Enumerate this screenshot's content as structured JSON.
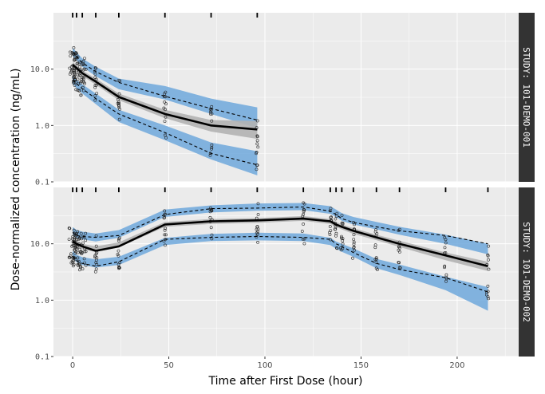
{
  "chart_data": {
    "type": "line",
    "xlabel": "Time after First Dose (hour)",
    "ylabel": "Dose-normalized concentration (ng/mL)",
    "y_scale": "log10",
    "ylim": [
      0.1,
      100
    ],
    "xlim": [
      -10,
      232
    ],
    "x_ticks": [
      0,
      50,
      100,
      150,
      200
    ],
    "x_tick_labels": [
      "0",
      "50",
      "100",
      "150",
      "200"
    ],
    "y_ticks": [
      0.1,
      1.0,
      10.0
    ],
    "y_tick_labels": [
      "0.1",
      "1.0",
      "10.0"
    ],
    "grid": true,
    "colors": {
      "panel_bg": "#ebebeb",
      "grid": "#ffffff",
      "pi_band": "#6fa8dc",
      "median_band": "#b3b3b3",
      "strip_bg": "#333333",
      "line": "#000000"
    },
    "panels": [
      {
        "strip": "STUDY: 101-DEMO-001",
        "bin_times": [
          0,
          2,
          5,
          12,
          24,
          48,
          72,
          96
        ],
        "median": [
          12,
          10.5,
          8.5,
          6,
          3.2,
          1.6,
          1.0,
          0.85
        ],
        "median_ci_lo": [
          10.8,
          9.4,
          7.6,
          5.3,
          2.8,
          1.35,
          0.78,
          0.58
        ],
        "median_ci_hi": [
          13.4,
          11.7,
          9.5,
          6.8,
          3.7,
          1.9,
          1.25,
          1.2
        ],
        "p05": [
          6.5,
          5.5,
          4.5,
          3.0,
          1.5,
          0.75,
          0.35,
          0.22
        ],
        "p05_ci_lo": [
          5.5,
          4.6,
          3.7,
          2.4,
          1.15,
          0.55,
          0.25,
          0.13
        ],
        "p05_ci_hi": [
          7.5,
          6.5,
          5.4,
          3.7,
          1.9,
          1.0,
          0.5,
          0.35
        ],
        "p95": [
          20,
          17,
          13,
          9,
          5.5,
          3.8,
          2.2,
          1.3
        ],
        "p95_ci_lo": [
          17,
          14.5,
          11,
          7.5,
          4.4,
          2.9,
          1.6,
          0.9
        ],
        "p95_ci_hi": [
          24,
          20,
          15.5,
          11,
          6.8,
          5.0,
          3.0,
          2.1
        ],
        "obs_median": [
          12,
          10.5,
          8.5,
          6,
          3.2,
          1.6,
          1.0,
          0.85
        ],
        "obs_p05": [
          6.5,
          5.5,
          4.5,
          3.0,
          1.6,
          0.75,
          0.32,
          0.2
        ],
        "obs_p95": [
          20,
          17,
          13,
          9,
          5.8,
          3.3,
          2.0,
          1.25
        ]
      },
      {
        "strip": "STUDY: 101-DEMO-002",
        "bin_times": [
          0,
          2,
          5,
          12,
          24,
          48,
          72,
          96,
          120,
          134,
          137,
          140,
          146,
          158,
          170,
          194,
          216
        ],
        "median": [
          11,
          10,
          9,
          8,
          9.5,
          22,
          25,
          26,
          28,
          25,
          22,
          20,
          17,
          13,
          10,
          6,
          4.0
        ],
        "median_ci_lo": [
          10,
          9,
          8,
          7.2,
          8.6,
          20,
          22.5,
          23.5,
          25.5,
          22.5,
          20,
          18,
          15,
          11.6,
          8.8,
          5.1,
          3.3
        ],
        "median_ci_hi": [
          12.2,
          11,
          10,
          9,
          10.6,
          24.5,
          27.5,
          28.5,
          31,
          27.5,
          24.5,
          22,
          19,
          14.5,
          11.3,
          7.0,
          4.8
        ],
        "p05": [
          6.5,
          5.5,
          5,
          4.5,
          5,
          11,
          13,
          13.5,
          13,
          11,
          9.5,
          8.5,
          7,
          4.5,
          3.5,
          2.0,
          1.3
        ],
        "p05_ci_lo": [
          5.6,
          4.7,
          4.2,
          3.8,
          4.2,
          9.5,
          11.2,
          11.5,
          11.2,
          9.5,
          8.2,
          7.2,
          5.9,
          3.7,
          2.8,
          1.5,
          0.65
        ],
        "p05_ci_hi": [
          7.5,
          6.4,
          5.8,
          5.3,
          5.9,
          12.7,
          15,
          15.7,
          15.2,
          12.8,
          11,
          10,
          8.3,
          5.4,
          4.3,
          2.6,
          1.7
        ],
        "p95": [
          17,
          15,
          14,
          13,
          15,
          35,
          42,
          45,
          46,
          40,
          35,
          30,
          26,
          21,
          17,
          12,
          8
        ],
        "p95_ci_lo": [
          14.5,
          12.8,
          12,
          11,
          12.8,
          30,
          36,
          38.5,
          39.5,
          34,
          30,
          25.5,
          22,
          18,
          14.5,
          10,
          6.5
        ],
        "p95_ci_hi": [
          19.8,
          17.6,
          16.4,
          15.2,
          17.5,
          40.5,
          48,
          52,
          53,
          46.5,
          40.5,
          35,
          30,
          24.5,
          20,
          14.5,
          10
        ],
        "obs_median": [
          11,
          10,
          9,
          7.5,
          9,
          22,
          25,
          26,
          28,
          25,
          22,
          20,
          17,
          13,
          10,
          6.2,
          4.0
        ],
        "obs_p05": [
          6,
          5,
          4.5,
          4,
          4.8,
          12,
          13,
          13.5,
          13,
          12,
          10,
          9,
          7,
          4.5,
          3.5,
          2.5,
          1.4
        ],
        "obs_p95": [
          16,
          14,
          13.5,
          13,
          14,
          33,
          42,
          43,
          45,
          38,
          33,
          28,
          24,
          20,
          17,
          14,
          10
        ]
      }
    ]
  }
}
